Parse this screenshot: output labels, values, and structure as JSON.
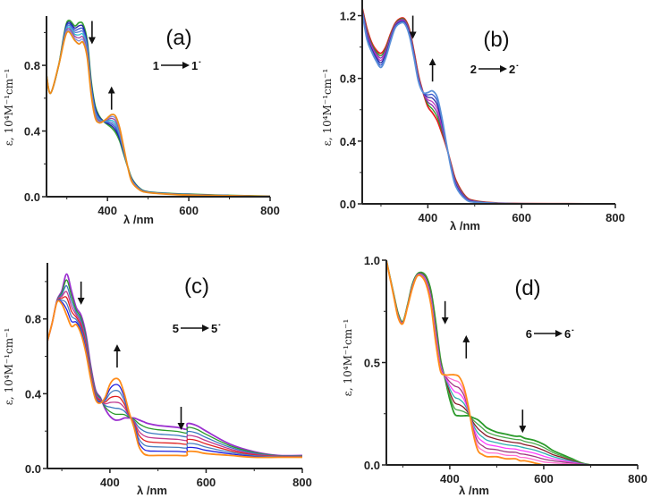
{
  "chart_data": [
    {
      "id": "a",
      "type": "line",
      "title": "(a)",
      "reaction": {
        "from": "1",
        "to": "1˙"
      },
      "xlabel": "λ /nm",
      "ylabel": "ε, 10⁴M⁻¹cm⁻¹",
      "xlim": [
        250,
        800
      ],
      "ylim": [
        0,
        1.1
      ],
      "xticks": [
        "400",
        "600",
        "800"
      ],
      "xminor": [
        300,
        500,
        700
      ],
      "yticks": [
        "0.0",
        "0.4",
        "0.8"
      ],
      "yminor": [
        0.2,
        0.6,
        1.0
      ],
      "x": [
        250,
        260,
        280,
        300,
        320,
        330,
        340,
        350,
        360,
        370,
        380,
        390,
        400,
        410,
        420,
        430,
        440,
        450,
        460,
        480,
        500,
        550,
        600,
        700,
        800
      ],
      "start": [
        0.74,
        0.63,
        0.8,
        1.06,
        1.04,
        1.06,
        1.05,
        0.95,
        0.7,
        0.55,
        0.49,
        0.46,
        0.44,
        0.42,
        0.39,
        0.34,
        0.26,
        0.18,
        0.11,
        0.05,
        0.03,
        0.02,
        0.015,
        0.008,
        0.003
      ],
      "end": [
        0.74,
        0.63,
        0.8,
        1.0,
        0.95,
        0.93,
        0.94,
        0.85,
        0.62,
        0.48,
        0.45,
        0.46,
        0.48,
        0.5,
        0.49,
        0.42,
        0.3,
        0.18,
        0.09,
        0.04,
        0.025,
        0.015,
        0.01,
        0.006,
        0.002
      ],
      "colors": [
        "#3aa33a",
        "#1a1aa0",
        "#3050d0",
        "#5a7fd6",
        "#30c0d0",
        "#a040a0",
        "#8090e0",
        "#f08c1a"
      ],
      "arrows": [
        {
          "x": 362,
          "y": 1.07,
          "dir": "down"
        },
        {
          "x": 410,
          "y": 0.53,
          "dir": "up"
        }
      ]
    },
    {
      "id": "b",
      "type": "line",
      "title": "(b)",
      "reaction": {
        "from": "2",
        "to": "2˙"
      },
      "xlabel": "λ /nm",
      "ylabel": "ε, 10⁴M⁻¹cm⁻¹",
      "xlim": [
        260,
        800
      ],
      "ylim": [
        0,
        1.3
      ],
      "xticks": [
        "400",
        "600",
        "800"
      ],
      "xminor": [
        300,
        500,
        700
      ],
      "yticks": [
        "0.0",
        "0.4",
        "0.8",
        "1.2"
      ],
      "yminor": [
        0.2,
        0.6,
        1.0
      ],
      "x": [
        260,
        270,
        280,
        290,
        300,
        310,
        320,
        330,
        340,
        350,
        360,
        370,
        380,
        390,
        400,
        410,
        420,
        430,
        440,
        450,
        460,
        480,
        500,
        550,
        600,
        700,
        800
      ],
      "start": [
        1.25,
        1.12,
        1.03,
        0.98,
        0.96,
        1.0,
        1.08,
        1.15,
        1.18,
        1.18,
        1.12,
        0.98,
        0.82,
        0.71,
        0.62,
        0.58,
        0.53,
        0.45,
        0.36,
        0.25,
        0.15,
        0.05,
        0.02,
        0.005,
        0.002,
        0.001,
        0
      ],
      "end": [
        1.22,
        1.05,
        0.97,
        0.91,
        0.87,
        0.93,
        1.03,
        1.12,
        1.15,
        1.15,
        1.08,
        0.94,
        0.78,
        0.71,
        0.71,
        0.72,
        0.68,
        0.55,
        0.38,
        0.22,
        0.11,
        0.03,
        0.01,
        0.003,
        0.001,
        0,
        0
      ],
      "colors": [
        "#e82020",
        "#2a9a2a",
        "#8a2ab0",
        "#c040c0",
        "#2a2aa0",
        "#3a5ad0",
        "#5a90d8"
      ],
      "arrows": [
        {
          "x": 368,
          "y": 1.2,
          "dir": "down"
        },
        {
          "x": 410,
          "y": 0.78,
          "dir": "up"
        }
      ]
    },
    {
      "id": "c",
      "type": "line",
      "title": "(c)",
      "reaction": {
        "from": "5",
        "to": "5˙"
      },
      "xlabel": "λ /nm",
      "ylabel": "ε, 10⁴M⁻¹cm⁻¹",
      "xlim": [
        270,
        800
      ],
      "ylim": [
        0,
        1.1
      ],
      "xticks": [
        "400",
        "600",
        "800"
      ],
      "xminor": [
        300,
        500,
        700
      ],
      "yticks": [
        "0.0",
        "0.4",
        "0.8"
      ],
      "yminor": [
        0.2,
        0.6,
        1.0
      ],
      "x": [
        270,
        280,
        290,
        300,
        310,
        320,
        330,
        340,
        350,
        360,
        370,
        380,
        390,
        400,
        410,
        420,
        430,
        440,
        450,
        460,
        470,
        480,
        500,
        540,
        560,
        561,
        580,
        600,
        650,
        700,
        750,
        800
      ],
      "start": [
        0.68,
        0.78,
        0.9,
        0.95,
        1.04,
        0.95,
        0.86,
        0.82,
        0.72,
        0.55,
        0.42,
        0.38,
        0.32,
        0.28,
        0.26,
        0.26,
        0.27,
        0.27,
        0.27,
        0.26,
        0.25,
        0.24,
        0.23,
        0.22,
        0.21,
        0.24,
        0.23,
        0.2,
        0.13,
        0.09,
        0.07,
        0.07
      ],
      "end": [
        0.68,
        0.78,
        0.89,
        0.88,
        0.82,
        0.76,
        0.77,
        0.72,
        0.62,
        0.48,
        0.37,
        0.35,
        0.38,
        0.45,
        0.48,
        0.47,
        0.4,
        0.3,
        0.22,
        0.12,
        0.08,
        0.07,
        0.07,
        0.07,
        0.07,
        0.09,
        0.09,
        0.08,
        0.07,
        0.06,
        0.06,
        0.06
      ],
      "colors": [
        "#9b30d0",
        "#2a9a2a",
        "#3a78c0",
        "#c03a90",
        "#e02020",
        "#4a80c0",
        "#2020e0",
        "#ff8c1a"
      ],
      "arrows": [
        {
          "x": 340,
          "y": 1.0,
          "dir": "down"
        },
        {
          "x": 415,
          "y": 0.54,
          "dir": "up"
        },
        {
          "x": 548,
          "y": 0.33,
          "dir": "down"
        }
      ]
    },
    {
      "id": "d",
      "type": "line",
      "title": "(d)",
      "reaction": {
        "from": "6",
        "to": "6˙"
      },
      "xlabel": "λ /nm",
      "ylabel": "ε, 10⁴M⁻¹cm⁻¹",
      "xlim": [
        265,
        800
      ],
      "ylim": [
        0,
        1.0
      ],
      "xticks": [
        "400",
        "600",
        "800"
      ],
      "xminor": [
        300,
        500,
        700
      ],
      "yticks": [
        "0.0",
        "0.5",
        "1.0"
      ],
      "yminor": [
        0.25,
        0.75
      ],
      "x": [
        265,
        280,
        290,
        300,
        310,
        320,
        330,
        340,
        350,
        360,
        370,
        380,
        390,
        400,
        410,
        420,
        430,
        440,
        450,
        460,
        470,
        480,
        500,
        520,
        540,
        550,
        560,
        580,
        600,
        620,
        640,
        660,
        680,
        700
      ],
      "start": [
        1.0,
        0.84,
        0.74,
        0.7,
        0.78,
        0.88,
        0.93,
        0.94,
        0.92,
        0.85,
        0.7,
        0.52,
        0.42,
        0.32,
        0.25,
        0.24,
        0.24,
        0.24,
        0.23,
        0.22,
        0.2,
        0.18,
        0.16,
        0.15,
        0.14,
        0.14,
        0.13,
        0.12,
        0.1,
        0.07,
        0.05,
        0.03,
        0.01,
        0
      ],
      "end": [
        1.0,
        0.83,
        0.72,
        0.69,
        0.77,
        0.86,
        0.92,
        0.92,
        0.88,
        0.78,
        0.6,
        0.46,
        0.44,
        0.44,
        0.44,
        0.43,
        0.38,
        0.28,
        0.15,
        0.07,
        0.05,
        0.04,
        0.04,
        0.03,
        0.03,
        0.02,
        0.02,
        0.01,
        0.0,
        0,
        0,
        0,
        0,
        0
      ],
      "colors": [
        "#2a9a2a",
        "#4aa84a",
        "#8a1a2a",
        "#30b0b0",
        "#ff40ff",
        "#a03a80",
        "#ff70d0",
        "#ff8c1a"
      ],
      "arrows": [
        {
          "x": 390,
          "y": 0.8,
          "dir": "down"
        },
        {
          "x": 435,
          "y": 0.52,
          "dir": "up"
        },
        {
          "x": 555,
          "y": 0.27,
          "dir": "down"
        }
      ]
    }
  ]
}
